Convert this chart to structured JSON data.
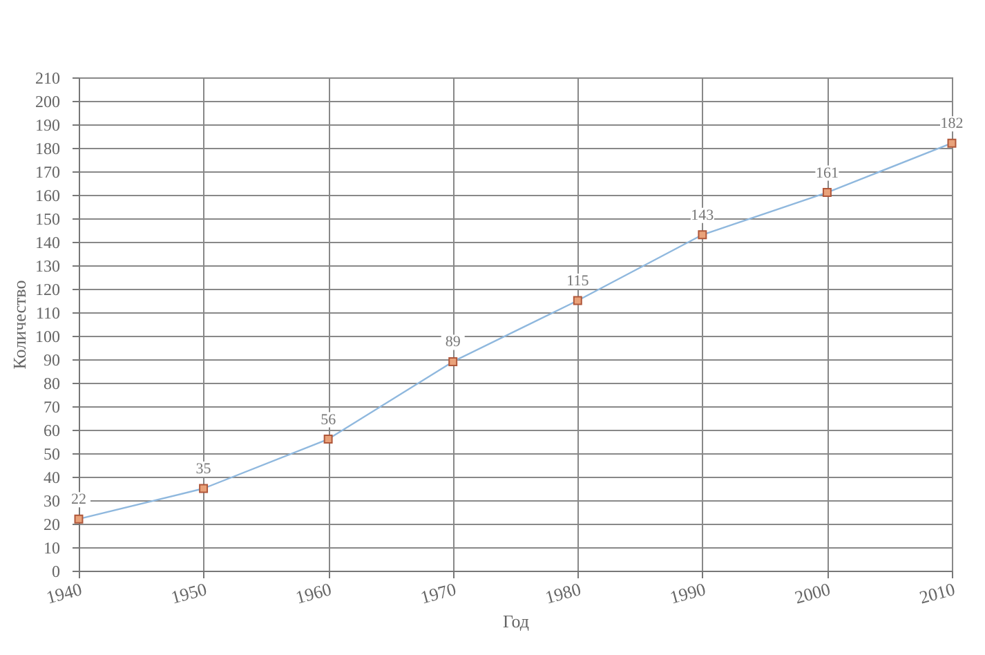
{
  "chart_data": {
    "type": "line",
    "xlabel": "Год",
    "ylabel": "Количество",
    "x": [
      1940,
      1950,
      1960,
      1970,
      1980,
      1990,
      2000,
      2010
    ],
    "series": [
      {
        "color": "#8fb8de",
        "values": [
          22,
          35,
          56,
          89,
          115,
          143,
          161,
          182
        ]
      }
    ],
    "xlim": [
      1940,
      2010
    ],
    "xticks": [
      1940,
      1950,
      1960,
      1970,
      1980,
      1990,
      2000,
      2010
    ],
    "ylim": [
      0,
      210
    ],
    "yticks": [
      0,
      10,
      20,
      30,
      40,
      50,
      60,
      70,
      80,
      90,
      100,
      110,
      120,
      130,
      140,
      150,
      160,
      170,
      180,
      190,
      200,
      210
    ],
    "grid": true,
    "marker": "square",
    "data_labels": true
  }
}
